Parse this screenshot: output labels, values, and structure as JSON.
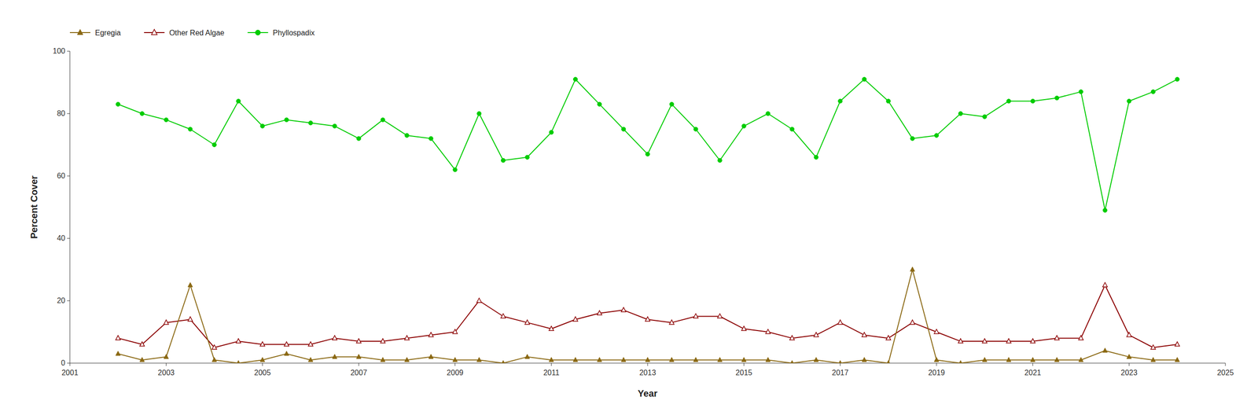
{
  "chart_data": {
    "type": "line",
    "x_label": "Year",
    "y_label": "Percent Cover",
    "x": [
      2002.0,
      2002.5,
      2003.0,
      2003.5,
      2004.0,
      2004.5,
      2005.0,
      2005.5,
      2006.0,
      2006.5,
      2007.0,
      2007.5,
      2008.0,
      2008.5,
      2009.0,
      2009.5,
      2010.0,
      2010.5,
      2011.0,
      2011.5,
      2012.0,
      2012.5,
      2013.0,
      2013.5,
      2014.0,
      2014.5,
      2015.0,
      2015.5,
      2016.0,
      2016.5,
      2017.0,
      2017.5,
      2018.0,
      2018.5,
      2019.0,
      2019.5,
      2020.0,
      2020.5,
      2021.0,
      2021.5,
      2022.0,
      2022.5,
      2023.0,
      2023.5,
      2024.0
    ],
    "series": [
      {
        "name": "Egregia",
        "color": "#8B6914",
        "marker": "triangle",
        "values": [
          3,
          1,
          2,
          25,
          1,
          0,
          1,
          3,
          1,
          2,
          2,
          1,
          1,
          2,
          1,
          1,
          0,
          2,
          1,
          1,
          1,
          1,
          1,
          1,
          1,
          1,
          1,
          1,
          0,
          1,
          0,
          1,
          0,
          30,
          1,
          0,
          1,
          1,
          1,
          1,
          1,
          4,
          2,
          1,
          1
        ]
      },
      {
        "name": "Other Red Algae",
        "color": "#8B0000",
        "marker": "triangle-open",
        "values": [
          8,
          6,
          13,
          14,
          5,
          7,
          6,
          6,
          6,
          8,
          7,
          7,
          8,
          9,
          10,
          20,
          15,
          13,
          11,
          14,
          16,
          17,
          14,
          13,
          15,
          15,
          11,
          10,
          8,
          9,
          13,
          9,
          8,
          13,
          10,
          7,
          7,
          7,
          7,
          8,
          8,
          25,
          9,
          5,
          6
        ]
      },
      {
        "name": "Phyllospadix",
        "color": "#00CC00",
        "marker": "circle",
        "values": [
          83,
          80,
          78,
          75,
          70,
          84,
          76,
          78,
          77,
          76,
          72,
          78,
          73,
          72,
          62,
          80,
          65,
          66,
          74,
          91,
          83,
          75,
          67,
          83,
          75,
          65,
          76,
          80,
          75,
          66,
          84,
          91,
          84,
          72,
          73,
          80,
          79,
          84,
          84,
          85,
          87,
          49,
          84,
          87,
          91
        ]
      }
    ],
    "xlim": [
      2001,
      2025
    ],
    "ylim": [
      0,
      100
    ],
    "xticks": [
      2001,
      2003,
      2005,
      2007,
      2009,
      2011,
      2013,
      2015,
      2017,
      2019,
      2021,
      2023,
      2025
    ],
    "yticks": [
      0,
      20,
      40,
      60,
      80,
      100
    ],
    "grid": false,
    "legend": "top"
  }
}
